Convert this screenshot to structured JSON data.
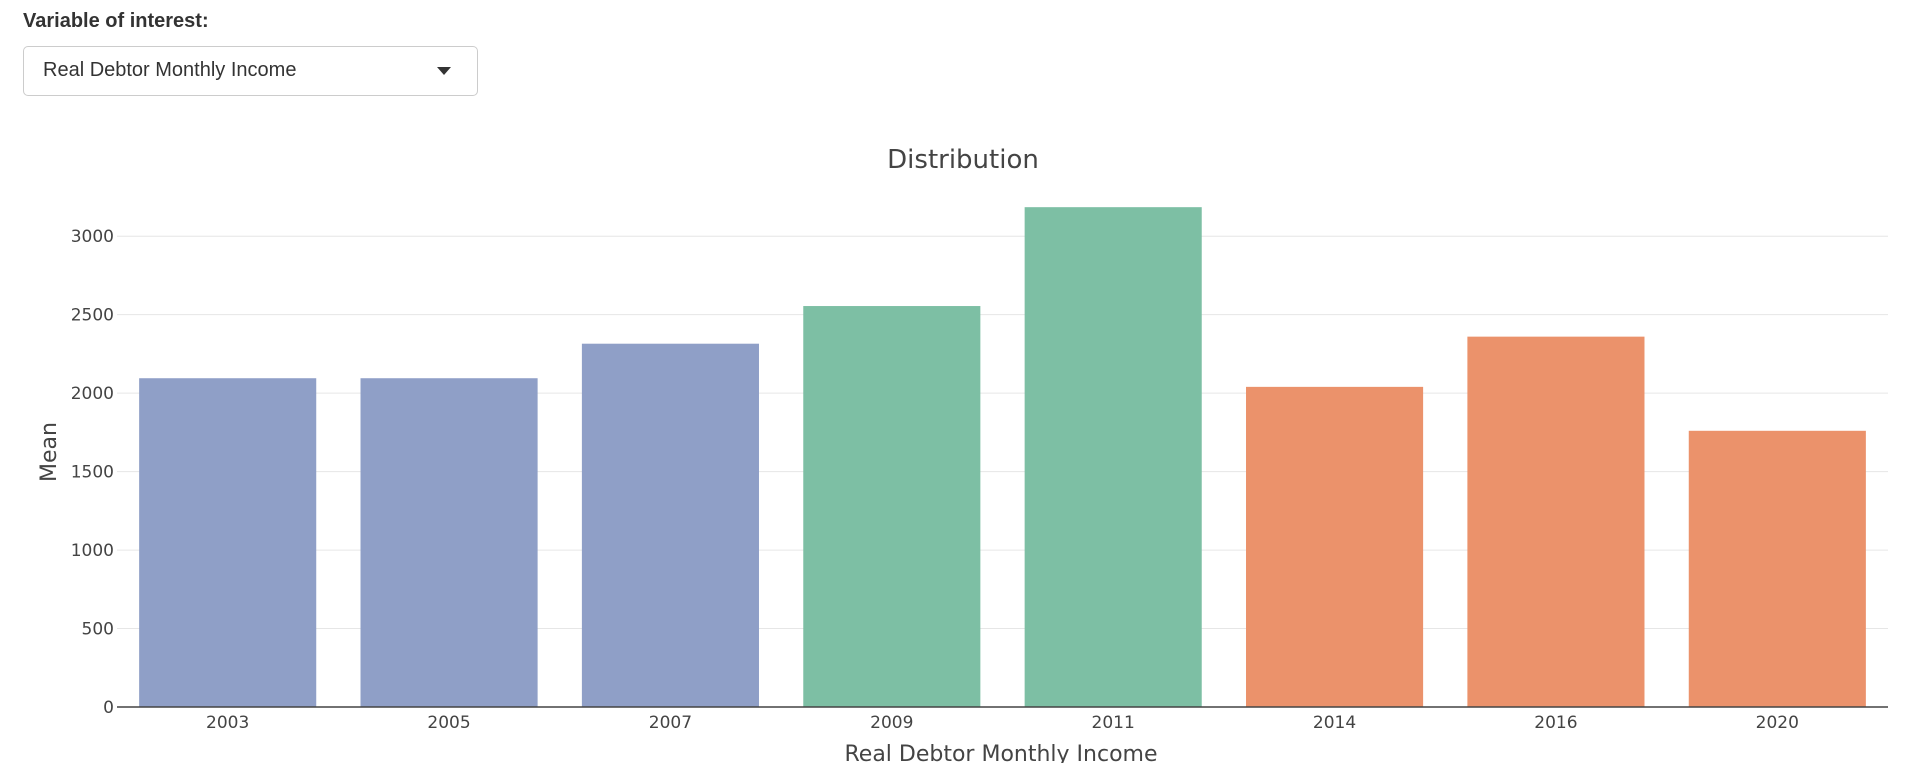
{
  "control": {
    "label": "Variable of interest:",
    "selected": "Real Debtor Monthly Income"
  },
  "chart_data": {
    "type": "bar",
    "title": "Distribution",
    "xlabel": "Real Debtor Monthly Income",
    "ylabel": "Mean",
    "categories": [
      "2003",
      "2005",
      "2007",
      "2009",
      "2011",
      "2014",
      "2016",
      "2020"
    ],
    "values": [
      2095,
      2095,
      2315,
      2555,
      3185,
      2040,
      2360,
      1760
    ],
    "colors": [
      "#8f9fc7",
      "#8f9fc7",
      "#8f9fc7",
      "#7dbfa4",
      "#7dbfa4",
      "#eb926b",
      "#eb926b",
      "#eb926b"
    ],
    "yticks": [
      0,
      500,
      1000,
      1500,
      2000,
      2500,
      3000
    ],
    "ylim": [
      0,
      3390
    ],
    "grid": true
  }
}
